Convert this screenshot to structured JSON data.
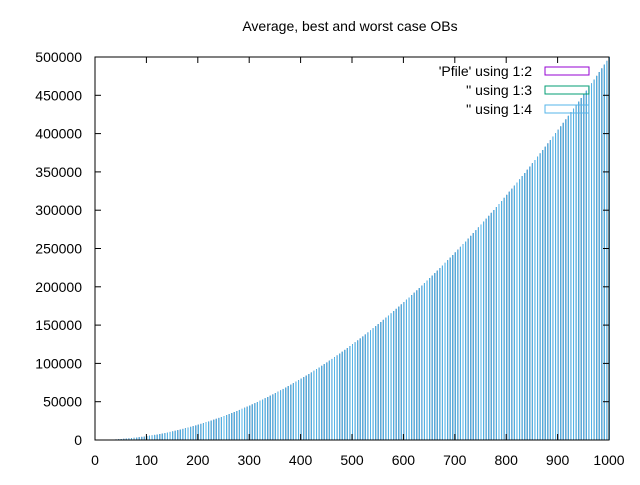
{
  "chart_data": {
    "type": "bar",
    "title": "Average, best and worst case OBs",
    "xlabel": "",
    "ylabel": "",
    "xlim": [
      0,
      1000
    ],
    "ylim": [
      0,
      500000
    ],
    "x_ticks": [
      0,
      100,
      200,
      300,
      400,
      500,
      600,
      700,
      800,
      900,
      1000
    ],
    "y_ticks": [
      0,
      50000,
      100000,
      150000,
      200000,
      250000,
      300000,
      350000,
      400000,
      450000,
      500000
    ],
    "grid": false,
    "legend_position": "top-right",
    "x": {
      "start": 40,
      "end": 1000,
      "step": 5
    },
    "series": [
      {
        "name": "'Pfile' using 1:2",
        "color": "#9400d3",
        "formula": "n^2/2"
      },
      {
        "name": "'' using 1:3",
        "color": "#009e73",
        "formula": "n^2/2"
      },
      {
        "name": "'' using 1:4",
        "color": "#56b4e9",
        "formula": "n^2/2"
      }
    ]
  }
}
